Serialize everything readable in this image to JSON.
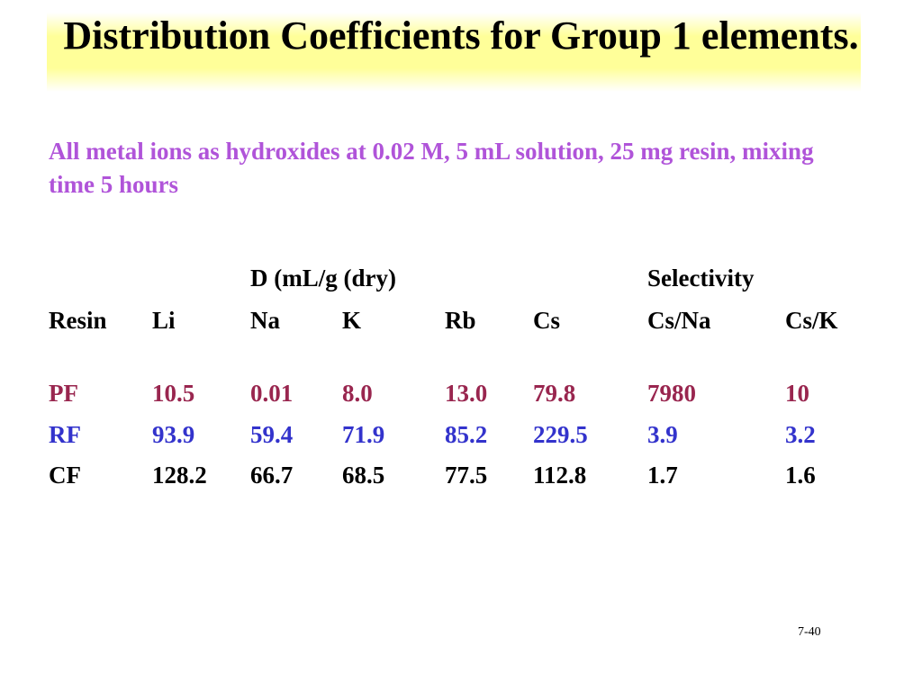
{
  "slide": {
    "title": "Distribution Coefficients for Group 1 elements.",
    "subtitle": "All metal ions as hydroxides at 0.02 M, 5 mL solution, 25 mg resin, mixing time 5 hours",
    "slide_number": "7-40"
  },
  "colors": {
    "title_band": "#ffff99",
    "subtitle": "#b054d9",
    "row_pf": "#99264f",
    "row_rf": "#3333cc",
    "row_cf": "#000000"
  },
  "table": {
    "group_headers": {
      "distribution": "D (mL/g (dry)",
      "selectivity": "Selectivity"
    },
    "columns": [
      "Resin",
      "Li",
      "Na",
      "K",
      "Rb",
      "Cs",
      "Cs/Na",
      "Cs/K"
    ],
    "rows": [
      [
        "PF",
        "10.5",
        "0.01",
        "8.0",
        "13.0",
        "79.8",
        "7980",
        "10"
      ],
      [
        "RF",
        "93.9",
        "59.4",
        "71.9",
        "85.2",
        "229.5",
        "3.9",
        "3.2"
      ],
      [
        "CF",
        "128.2",
        "66.7",
        "68.5",
        "77.5",
        "112.8",
        "1.7",
        "1.6"
      ]
    ]
  }
}
